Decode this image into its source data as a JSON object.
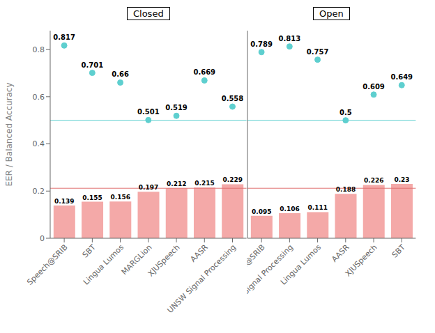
{
  "chart_data": [
    {
      "type": "bar",
      "title": "Closed",
      "ylabel": "EER / Balanced Accuracy",
      "categories": [
        "Speech@SRIB",
        "SBT",
        "Lingua Lumos",
        "MARGLion",
        "XJUSpeech",
        "AASR",
        "UNSW Signal Processing"
      ],
      "series": [
        {
          "type": "bar",
          "color": "#f4a9a8",
          "values": [
            0.139,
            0.155,
            0.156,
            0.197,
            0.212,
            0.215,
            0.229
          ]
        },
        {
          "type": "scatter",
          "color": "#5ecfcf",
          "values": [
            0.817,
            0.701,
            0.66,
            0.501,
            0.519,
            0.669,
            0.558
          ]
        }
      ],
      "reference_lines": [
        {
          "value": 0.212,
          "color": "#e07070"
        },
        {
          "value": 0.5,
          "color": "#5ecfcf"
        }
      ],
      "ylim": [
        0.0,
        0.88
      ],
      "yticks": [
        0.0,
        0.2,
        0.4,
        0.6,
        0.8
      ],
      "data_labels": true,
      "grid": false
    },
    {
      "type": "bar",
      "title": "Open",
      "categories": [
        "Speech@SRIB",
        "UNSW Signal Processing",
        "Lingua Lumos",
        "AASR",
        "XJUSpeech",
        "SBT"
      ],
      "series": [
        {
          "type": "bar",
          "color": "#f4a9a8",
          "values": [
            0.095,
            0.106,
            0.111,
            0.188,
            0.226,
            0.23
          ]
        },
        {
          "type": "scatter",
          "color": "#5ecfcf",
          "values": [
            0.789,
            0.813,
            0.757,
            0.5,
            0.609,
            0.649
          ]
        }
      ],
      "reference_lines": [
        {
          "value": 0.212,
          "color": "#e07070"
        },
        {
          "value": 0.5,
          "color": "#5ecfcf"
        }
      ],
      "ylim": [
        0.0,
        0.88
      ],
      "yticks": [
        0.0,
        0.2,
        0.4,
        0.6,
        0.8
      ],
      "data_labels": true,
      "grid": false,
      "tick_labels": "x"
    }
  ]
}
